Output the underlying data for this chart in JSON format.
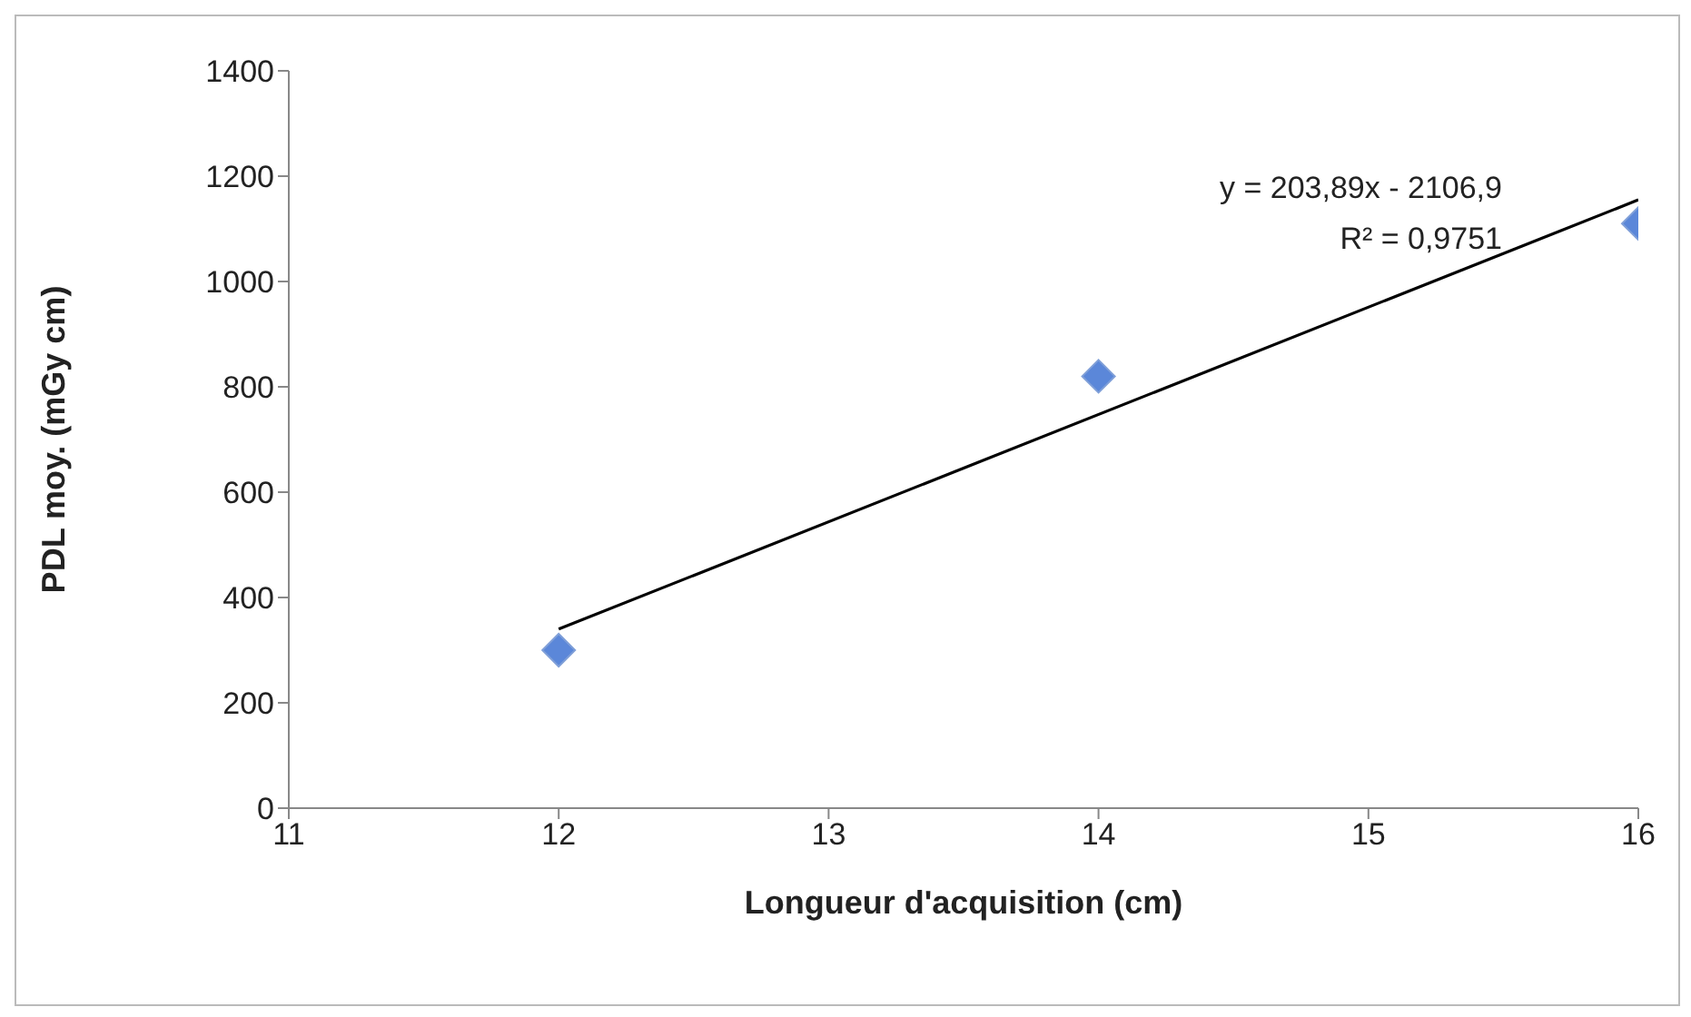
{
  "chart_data": {
    "type": "scatter",
    "xlabel": "Longueur d'acquisition (cm)",
    "ylabel": "PDL moy. (mGy cm)",
    "x": [
      12,
      14,
      16
    ],
    "series": [
      {
        "type": "line",
        "color": "#000000",
        "x": [
          12,
          16
        ],
        "values": [
          340,
          1155
        ],
        "marker": "none",
        "line_style": "solid"
      },
      {
        "type": "scatter",
        "color": "#5b87d9",
        "values": [
          300,
          820,
          1110
        ],
        "marker": "diamond"
      }
    ],
    "xlim": [
      11,
      16
    ],
    "xticks": [
      11,
      12,
      13,
      14,
      15,
      16
    ],
    "ylim": [
      0,
      1400
    ],
    "yticks": [
      0,
      200,
      400,
      600,
      800,
      1000,
      1200,
      1400
    ],
    "grid": false,
    "legend": false,
    "annotations": [
      "y = 203,89x - 2106,9",
      "R² = 0,9751"
    ]
  }
}
